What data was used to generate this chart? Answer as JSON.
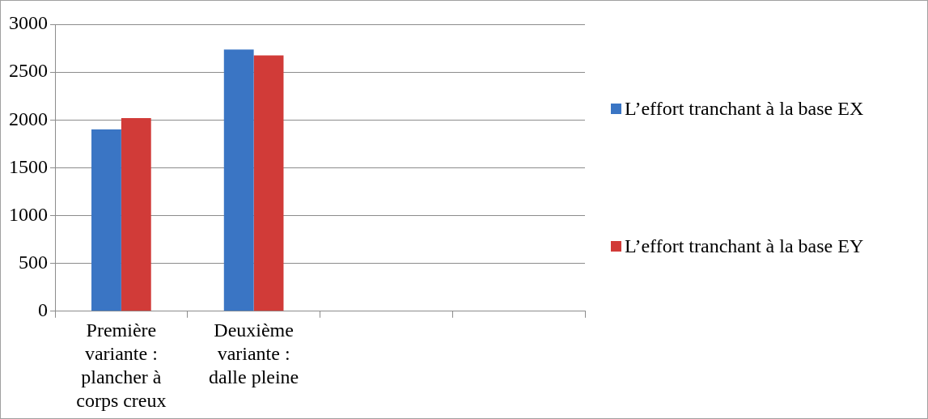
{
  "chart_data": {
    "type": "bar",
    "categories": [
      "Première variante : plancher à corps creux",
      "Deuxième variante : dalle pleine",
      null,
      null
    ],
    "series": [
      {
        "name": "L’effort tranchant à la base EX",
        "color": "#3a75c4",
        "values": [
          1900,
          2735,
          null,
          null
        ]
      },
      {
        "name": "L’effort tranchant à la base EY",
        "color": "#d13b38",
        "values": [
          2020,
          2675,
          null,
          null
        ]
      }
    ],
    "ylim": [
      0,
      3000
    ],
    "yticks": [
      0,
      500,
      1000,
      1500,
      2000,
      2500,
      3000
    ],
    "grid": "y",
    "legend": "right"
  }
}
